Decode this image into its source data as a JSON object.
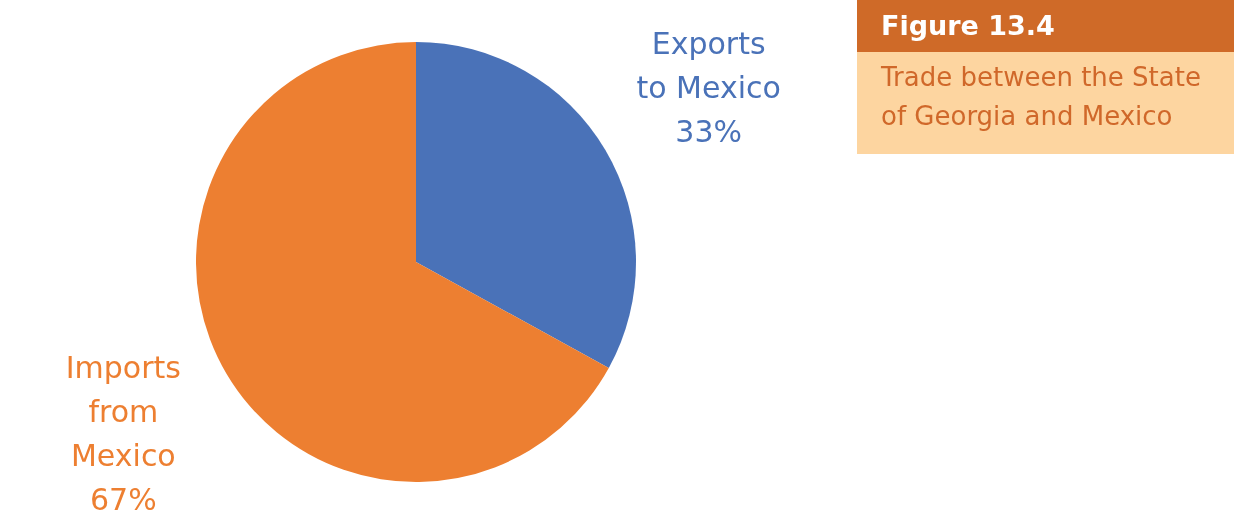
{
  "chart_data": {
    "type": "pie",
    "title": "Figure 13.4",
    "subtitle": "Trade between the State of Georgia and Mexico",
    "categories": [
      "Exports to Mexico",
      "Imports from Mexico"
    ],
    "values": [
      33,
      67
    ],
    "colors": [
      "#4a72b8",
      "#ed7f31"
    ],
    "value_labels": [
      "33%",
      "67%"
    ]
  }
}
